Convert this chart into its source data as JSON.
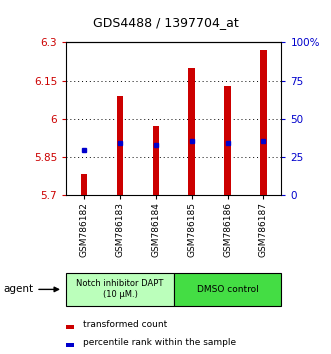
{
  "title": "GDS4488 / 1397704_at",
  "samples": [
    "GSM786182",
    "GSM786183",
    "GSM786184",
    "GSM786185",
    "GSM786186",
    "GSM786187"
  ],
  "y_min": 5.7,
  "y_max": 6.3,
  "y_ticks": [
    5.7,
    5.85,
    6.0,
    6.15,
    6.3
  ],
  "y_tick_labels": [
    "5.7",
    "5.85",
    "6",
    "6.15",
    "6.3"
  ],
  "y2_ticks": [
    0,
    25,
    50,
    75,
    100
  ],
  "y2_tick_labels": [
    "0",
    "25",
    "50",
    "75",
    "100%"
  ],
  "bar_bottoms": [
    5.7,
    5.7,
    5.7,
    5.7,
    5.7,
    5.7
  ],
  "bar_tops": [
    5.78,
    6.09,
    5.97,
    6.2,
    6.13,
    6.27
  ],
  "percentile_values": [
    5.875,
    5.905,
    5.895,
    5.91,
    5.905,
    5.91
  ],
  "bar_color": "#CC0000",
  "percentile_color": "#0000CC",
  "agent_group1_color": "#BBFFBB",
  "agent_group2_color": "#44DD44",
  "tick_label_color_left": "#CC0000",
  "tick_label_color_right": "#0000CC",
  "group1_label": "Notch inhibitor DAPT\n(10 μM.)",
  "group2_label": "DMSO control",
  "agent_label": "agent",
  "legend1": "transformed count",
  "legend2": "percentile rank within the sample"
}
